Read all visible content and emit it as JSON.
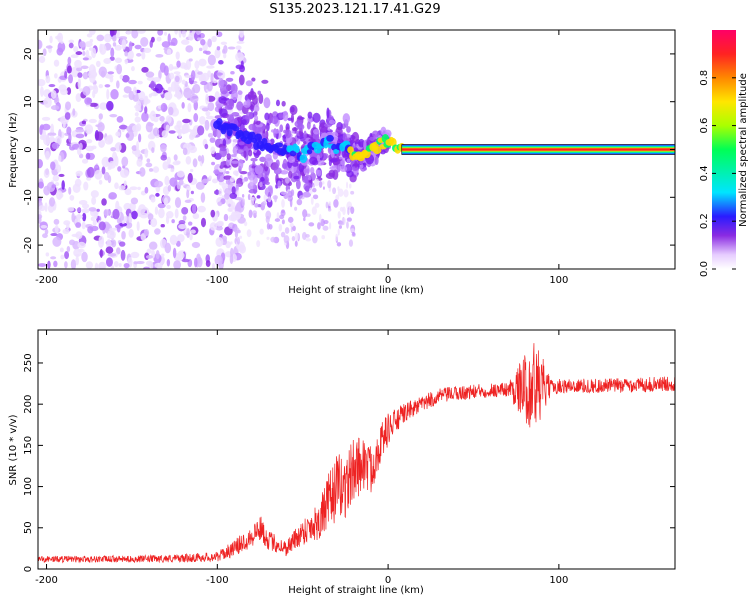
{
  "title": "S135.2023.121.17.41.G29",
  "colors": {
    "snr_line": "#ee2222",
    "spectral_line": "#ee1111",
    "axis": "#000000"
  },
  "chart_data": [
    {
      "type": "heatmap",
      "xlabel": "Height of straight line (km)",
      "ylabel": "Frequency (Hz)",
      "xlim": [
        -205,
        168
      ],
      "ylim": [
        -25,
        25
      ],
      "xticks": [
        -200,
        -100,
        0,
        100
      ],
      "xtick_labels": [
        "-200",
        "-100",
        "0",
        "100"
      ],
      "yticks": [
        -20,
        -10,
        0,
        10,
        20
      ],
      "ytick_labels": [
        "-20",
        "-10",
        "0",
        "10",
        "20"
      ],
      "colorbar": {
        "label": "Normalized spectral amplitude",
        "range": [
          0.0,
          1.0
        ],
        "ticks": [
          0.0,
          0.2,
          0.4,
          0.6,
          0.8
        ],
        "tick_labels": [
          "0.0",
          "0.2",
          "0.4",
          "0.6",
          "0.8"
        ],
        "colormap": "hsv-rainbow (white-violet-blue-cyan-green-yellow-red)"
      },
      "features": [
        {
          "description": "scattered low-amplitude violet speckle",
          "x_range": [
            -205,
            -100
          ],
          "y_range": [
            -25,
            25
          ],
          "amplitude": 0.1
        },
        {
          "description": "converging noise band",
          "x_range": [
            -100,
            0
          ],
          "y_range": [
            -15,
            10
          ],
          "amplitude": 0.25
        },
        {
          "description": "strong dominant signal",
          "x_range": [
            8,
            168
          ],
          "frequency": 0.0,
          "amplitude": 1.0
        }
      ],
      "ridge": {
        "x": [
          -100,
          -90,
          -80,
          -70,
          -60,
          -50,
          -40,
          -35,
          -30,
          -25,
          -20,
          -15,
          -10,
          -5,
          0,
          5,
          10
        ],
        "y": [
          5,
          4,
          2,
          1,
          0,
          -1,
          1,
          2,
          0,
          1,
          -2,
          -1,
          0,
          1,
          2,
          0.5,
          0
        ]
      }
    },
    {
      "type": "line",
      "xlabel": "Height of straight line (km)",
      "ylabel": "SNR (10 * v/v)",
      "xlim": [
        -205,
        168
      ],
      "ylim": [
        0,
        290
      ],
      "xticks": [
        -200,
        -100,
        0,
        100
      ],
      "xtick_labels": [
        "-200",
        "-100",
        "0",
        "100"
      ],
      "yticks": [
        0,
        50,
        100,
        150,
        200,
        250
      ],
      "ytick_labels": [
        "0",
        "50",
        "100",
        "150",
        "200",
        "250"
      ],
      "series": [
        {
          "x": [
            -205,
            -180,
            -150,
            -120,
            -100,
            -90,
            -80,
            -75,
            -70,
            -60,
            -50,
            -40,
            -35,
            -30,
            -25,
            -20,
            -15,
            -10,
            -5,
            0,
            5,
            10,
            15,
            20,
            25,
            30,
            40,
            50,
            60,
            70,
            80,
            85,
            90,
            95,
            100,
            120,
            140,
            168
          ],
          "y": [
            12,
            12,
            12,
            13,
            15,
            25,
            40,
            50,
            35,
            25,
            45,
            60,
            80,
            100,
            100,
            120,
            130,
            120,
            150,
            170,
            180,
            190,
            195,
            200,
            205,
            210,
            213,
            215,
            217,
            218,
            220,
            222,
            220,
            220,
            222,
            222,
            223,
            225
          ],
          "noise": [
            4,
            4,
            4,
            5,
            6,
            10,
            14,
            16,
            12,
            10,
            16,
            25,
            35,
            40,
            40,
            40,
            35,
            30,
            25,
            20,
            15,
            12,
            10,
            10,
            10,
            9,
            9,
            9,
            9,
            9,
            40,
            60,
            40,
            10,
            9,
            9,
            9,
            9
          ]
        }
      ]
    }
  ]
}
